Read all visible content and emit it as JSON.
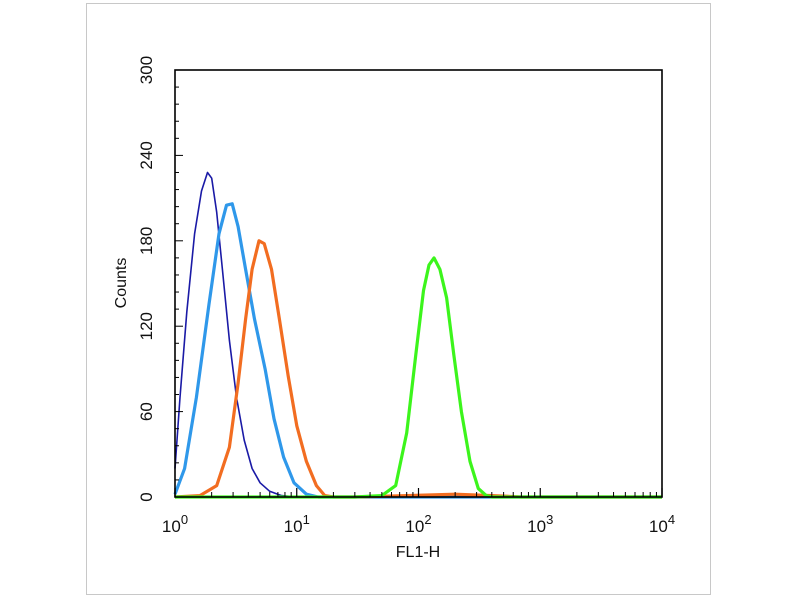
{
  "chart_data": {
    "type": "line",
    "title": "",
    "xlabel": "FL1-H",
    "ylabel": "Counts",
    "xscale": "log",
    "xlim": [
      1,
      10000
    ],
    "ylim": [
      0,
      300
    ],
    "grid": false,
    "x_ticks": [
      {
        "base": "10",
        "exp": "0",
        "value": 1
      },
      {
        "base": "10",
        "exp": "1",
        "value": 10
      },
      {
        "base": "10",
        "exp": "2",
        "value": 100
      },
      {
        "base": "10",
        "exp": "3",
        "value": 1000
      },
      {
        "base": "10",
        "exp": "4",
        "value": 10000
      }
    ],
    "y_ticks": [
      "0",
      "60",
      "120",
      "180",
      "240",
      "300"
    ],
    "series": [
      {
        "color": "#1a1aa6",
        "points": [
          [
            1.0,
            20
          ],
          [
            1.1,
            70
          ],
          [
            1.25,
            130
          ],
          [
            1.45,
            185
          ],
          [
            1.65,
            215
          ],
          [
            1.85,
            228
          ],
          [
            2.0,
            224
          ],
          [
            2.2,
            200
          ],
          [
            2.45,
            160
          ],
          [
            2.8,
            110
          ],
          [
            3.2,
            70
          ],
          [
            3.7,
            40
          ],
          [
            4.3,
            20
          ],
          [
            5.0,
            10
          ],
          [
            6.0,
            4
          ],
          [
            7.5,
            1
          ],
          [
            10,
            0
          ],
          [
            10000,
            0
          ]
        ]
      },
      {
        "color": "#2f98ea",
        "points": [
          [
            1.0,
            2
          ],
          [
            1.2,
            20
          ],
          [
            1.5,
            70
          ],
          [
            1.9,
            135
          ],
          [
            2.3,
            185
          ],
          [
            2.65,
            205
          ],
          [
            2.95,
            206
          ],
          [
            3.3,
            190
          ],
          [
            3.8,
            160
          ],
          [
            4.5,
            125
          ],
          [
            5.5,
            90
          ],
          [
            6.5,
            55
          ],
          [
            7.8,
            28
          ],
          [
            9.5,
            10
          ],
          [
            12,
            2
          ],
          [
            15,
            0
          ],
          [
            10000,
            0
          ]
        ]
      },
      {
        "color": "#f26d21",
        "points": [
          [
            1.0,
            0
          ],
          [
            1.6,
            1
          ],
          [
            2.2,
            8
          ],
          [
            2.8,
            35
          ],
          [
            3.3,
            80
          ],
          [
            3.8,
            125
          ],
          [
            4.3,
            160
          ],
          [
            4.9,
            180
          ],
          [
            5.4,
            178
          ],
          [
            6.2,
            160
          ],
          [
            7.2,
            125
          ],
          [
            8.5,
            85
          ],
          [
            10,
            50
          ],
          [
            12,
            25
          ],
          [
            14.5,
            8
          ],
          [
            17,
            1
          ],
          [
            20,
            0
          ],
          [
            30,
            0
          ],
          [
            80,
            1
          ],
          [
            200,
            2
          ],
          [
            400,
            1
          ],
          [
            700,
            0
          ],
          [
            10000,
            0
          ]
        ]
      },
      {
        "color": "#3cf51c",
        "points": [
          [
            1.0,
            0
          ],
          [
            30,
            0
          ],
          [
            50,
            1
          ],
          [
            65,
            8
          ],
          [
            80,
            45
          ],
          [
            95,
            100
          ],
          [
            110,
            145
          ],
          [
            122,
            163
          ],
          [
            134,
            168
          ],
          [
            150,
            160
          ],
          [
            170,
            140
          ],
          [
            195,
            100
          ],
          [
            225,
            60
          ],
          [
            265,
            25
          ],
          [
            310,
            6
          ],
          [
            360,
            1
          ],
          [
            400,
            0
          ],
          [
            10000,
            0
          ]
        ]
      }
    ]
  }
}
